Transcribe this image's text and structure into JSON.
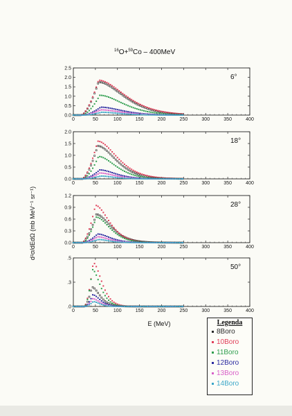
{
  "page_title_html": "<tspan dy='-4' font-size='6'>16</tspan><tspan dy='4'>O+</tspan><tspan dy='-4' font-size='6'>59</tspan><tspan dy='4'>Co &#8211; 400MeV</tspan>",
  "page_title": "16O+59Co – 400MeV",
  "xlabel": "E (MeV)",
  "ylabel": "d²σ/dEdΩ (mb MeV⁻¹ sr⁻¹)",
  "legend": {
    "title": "Legenda",
    "items": [
      {
        "label": "8Boro",
        "color": "#2a2a2a"
      },
      {
        "label": "10Boro",
        "color": "#e0405a"
      },
      {
        "label": "11Boro",
        "color": "#2f9e4e"
      },
      {
        "label": "12Boro",
        "color": "#2a2aa0"
      },
      {
        "label": "13Boro",
        "color": "#d860c8"
      },
      {
        "label": "14Boro",
        "color": "#3aa6c8"
      }
    ]
  },
  "chart_data": [
    {
      "type": "scatter",
      "angle": "6°",
      "xlim": [
        0,
        400
      ],
      "ylim": [
        0,
        2.5
      ],
      "x_ticks": [
        "0",
        "50",
        "100",
        "150",
        "200",
        "250",
        "300",
        "350",
        "400"
      ],
      "y_ticks": [
        "0.0",
        "0.5",
        "1.0",
        "1.5",
        "2.0",
        "2.5"
      ],
      "x_end": 250,
      "series": [
        {
          "name": "8Boro",
          "onset": 18,
          "peak_x": 57,
          "peak_y": 1.75,
          "decay": 48
        },
        {
          "name": "10Boro",
          "onset": 18,
          "peak_x": 57,
          "peak_y": 1.85,
          "decay": 50
        },
        {
          "name": "11Boro",
          "onset": 20,
          "peak_x": 60,
          "peak_y": 1.05,
          "decay": 45
        },
        {
          "name": "12Boro",
          "onset": 22,
          "peak_x": 62,
          "peak_y": 0.42,
          "decay": 40
        },
        {
          "name": "13Boro",
          "onset": 22,
          "peak_x": 62,
          "peak_y": 0.28,
          "decay": 38
        },
        {
          "name": "14Boro",
          "onset": 24,
          "peak_x": 64,
          "peak_y": 0.15,
          "decay": 35
        }
      ]
    },
    {
      "type": "scatter",
      "angle": "18°",
      "xlim": [
        0,
        400
      ],
      "ylim": [
        0,
        2.0
      ],
      "x_ticks": [
        "0",
        "50",
        "100",
        "150",
        "200",
        "250",
        "300",
        "350",
        "400"
      ],
      "y_ticks": [
        "0.0",
        "0.5",
        "1.0",
        "1.5",
        "2.0"
      ],
      "x_end": 250,
      "series": [
        {
          "name": "8Boro",
          "onset": 20,
          "peak_x": 55,
          "peak_y": 1.4,
          "decay": 35
        },
        {
          "name": "10Boro",
          "onset": 20,
          "peak_x": 55,
          "peak_y": 1.6,
          "decay": 37
        },
        {
          "name": "11Boro",
          "onset": 22,
          "peak_x": 57,
          "peak_y": 0.95,
          "decay": 33
        },
        {
          "name": "12Boro",
          "onset": 22,
          "peak_x": 60,
          "peak_y": 0.38,
          "decay": 30
        },
        {
          "name": "13Boro",
          "onset": 24,
          "peak_x": 60,
          "peak_y": 0.25,
          "decay": 28
        },
        {
          "name": "14Boro",
          "onset": 24,
          "peak_x": 62,
          "peak_y": 0.12,
          "decay": 25
        }
      ]
    },
    {
      "type": "scatter",
      "angle": "28°",
      "xlim": [
        0,
        400
      ],
      "ylim": [
        0,
        1.2
      ],
      "x_ticks": [
        "0",
        "50",
        "100",
        "150",
        "200",
        "250",
        "300",
        "350",
        "400"
      ],
      "y_ticks": [
        "0.0",
        "0.3",
        "0.6",
        "0.9",
        "1.2"
      ],
      "x_end": 250,
      "series": [
        {
          "name": "8Boro",
          "onset": 20,
          "peak_x": 52,
          "peak_y": 0.72,
          "decay": 28
        },
        {
          "name": "10Boro",
          "onset": 20,
          "peak_x": 50,
          "peak_y": 0.95,
          "decay": 26
        },
        {
          "name": "11Boro",
          "onset": 22,
          "peak_x": 52,
          "peak_y": 0.65,
          "decay": 26
        },
        {
          "name": "12Boro",
          "onset": 22,
          "peak_x": 55,
          "peak_y": 0.22,
          "decay": 24
        },
        {
          "name": "13Boro",
          "onset": 24,
          "peak_x": 55,
          "peak_y": 0.15,
          "decay": 22
        },
        {
          "name": "14Boro",
          "onset": 24,
          "peak_x": 57,
          "peak_y": 0.08,
          "decay": 20
        }
      ]
    },
    {
      "type": "scatter",
      "angle": "50°",
      "xlim": [
        0,
        400
      ],
      "ylim": [
        0,
        0.5
      ],
      "x_ticks": [
        "0",
        "50",
        "100",
        "150",
        "200",
        "250",
        "300",
        "350",
        "400"
      ],
      "y_ticks": [
        ".0",
        ".3",
        ".5"
      ],
      "y_tick_values": [
        0,
        0.25,
        0.5
      ],
      "x_end": 250,
      "series": [
        {
          "name": "8Boro",
          "onset": 25,
          "peak_x": 42,
          "peak_y": 0.2,
          "decay": 15
        },
        {
          "name": "10Boro",
          "onset": 25,
          "peak_x": 45,
          "peak_y": 0.45,
          "decay": 16
        },
        {
          "name": "11Boro",
          "onset": 26,
          "peak_x": 43,
          "peak_y": 0.38,
          "decay": 15
        },
        {
          "name": "12Boro",
          "onset": 26,
          "peak_x": 44,
          "peak_y": 0.12,
          "decay": 14
        },
        {
          "name": "13Boro",
          "onset": 27,
          "peak_x": 44,
          "peak_y": 0.08,
          "decay": 13
        },
        {
          "name": "14Boro",
          "onset": 27,
          "peak_x": 45,
          "peak_y": 0.05,
          "decay": 12
        }
      ]
    }
  ]
}
